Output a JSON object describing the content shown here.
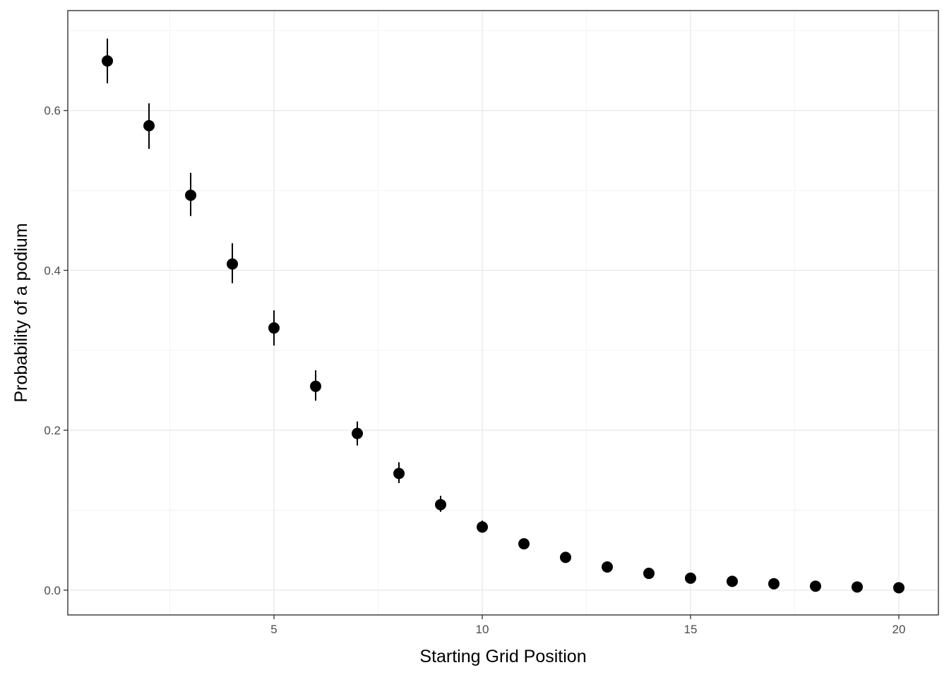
{
  "chart_data": {
    "type": "scatter",
    "title": "",
    "xlabel": "Starting Grid Position",
    "ylabel": "Probability of a podium",
    "xlim": [
      0.05,
      20.95
    ],
    "ylim": [
      -0.031,
      0.725
    ],
    "x_ticks": [
      5,
      10,
      15,
      20
    ],
    "x_tick_labels": [
      "5",
      "10",
      "15",
      "20"
    ],
    "y_ticks": [
      0.0,
      0.2,
      0.4,
      0.6
    ],
    "y_tick_labels": [
      "0.0",
      "0.2",
      "0.4",
      "0.6"
    ],
    "grid": true,
    "legend": "none",
    "series": [
      {
        "x": [
          1,
          2,
          3,
          4,
          5,
          6,
          7,
          8,
          9,
          10,
          11,
          12,
          13,
          14,
          15,
          16,
          17,
          18,
          19,
          20
        ],
        "y": [
          0.662,
          0.581,
          0.494,
          0.408,
          0.328,
          0.255,
          0.196,
          0.146,
          0.107,
          0.079,
          0.058,
          0.041,
          0.029,
          0.021,
          0.015,
          0.011,
          0.008,
          0.005,
          0.004,
          0.003
        ],
        "ymin": [
          0.634,
          0.552,
          0.468,
          0.384,
          0.306,
          0.237,
          0.181,
          0.134,
          0.098,
          0.072,
          0.052,
          0.036,
          0.025,
          0.018,
          0.012,
          0.008,
          0.006,
          0.004,
          0.003,
          0.002
        ],
        "ymax": [
          0.69,
          0.609,
          0.522,
          0.434,
          0.35,
          0.275,
          0.211,
          0.16,
          0.118,
          0.087,
          0.064,
          0.046,
          0.033,
          0.024,
          0.018,
          0.013,
          0.01,
          0.007,
          0.005,
          0.004
        ]
      }
    ]
  }
}
